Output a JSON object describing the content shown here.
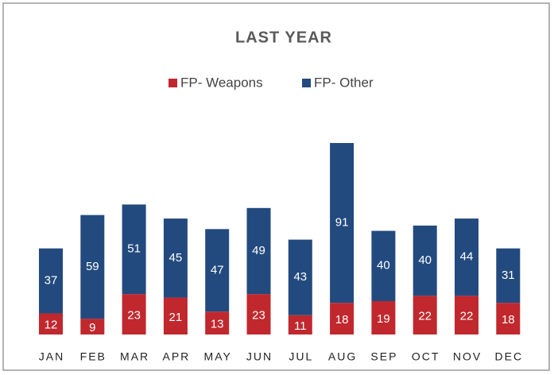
{
  "chart_data": {
    "type": "stacked_bar",
    "title": "LAST YEAR",
    "categories": [
      "JAN",
      "FEB",
      "MAR",
      "APR",
      "MAY",
      "JUN",
      "JUL",
      "AUG",
      "SEP",
      "OCT",
      "NOV",
      "DEC"
    ],
    "series": [
      {
        "name": "FP- Weapons",
        "color": "#c0282d",
        "values": [
          12,
          9,
          23,
          21,
          13,
          23,
          11,
          18,
          19,
          22,
          22,
          18
        ]
      },
      {
        "name": "FP- Other",
        "color": "#234a7e",
        "values": [
          37,
          59,
          51,
          45,
          47,
          49,
          43,
          91,
          40,
          40,
          44,
          31
        ]
      }
    ],
    "legend": "top"
  }
}
